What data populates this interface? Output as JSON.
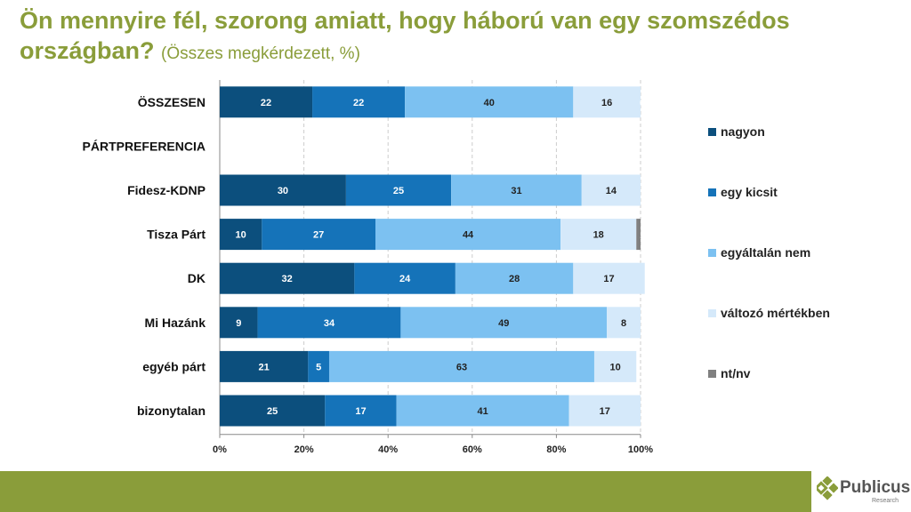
{
  "header": {
    "title": "Ön mennyire fél, szorong amiatt, hogy háború van egy szomszédos országban?",
    "subtitle": "(Összes megkérdezett, %)"
  },
  "chart_data": {
    "type": "bar",
    "stacked": true,
    "orientation": "horizontal",
    "categories": [
      "ÖSSZESEN",
      "PÁRTPREFERENCIA",
      "Fidesz-KDNP",
      "Tisza Párt",
      "DK",
      "Mi Hazánk",
      "egyéb párt",
      "bizonytalan"
    ],
    "series": [
      {
        "name": "nagyon",
        "color": "#0c4f7d",
        "values": [
          22,
          null,
          30,
          10,
          32,
          9,
          21,
          25
        ]
      },
      {
        "name": "egy kicsit",
        "color": "#1573b9",
        "values": [
          22,
          null,
          25,
          27,
          24,
          34,
          5,
          17
        ]
      },
      {
        "name": "egyáltalán nem",
        "color": "#7cc1f1",
        "values": [
          40,
          null,
          31,
          44,
          28,
          49,
          63,
          41
        ]
      },
      {
        "name": "változó mértékben",
        "color": "#d5e9fa",
        "values": [
          16,
          null,
          14,
          18,
          17,
          8,
          10,
          17
        ]
      },
      {
        "name": "nt/nv",
        "color": "#808080",
        "values": [
          0,
          null,
          0,
          1,
          0,
          0,
          0,
          0
        ]
      }
    ],
    "xticks": [
      "0%",
      "20%",
      "40%",
      "60%",
      "80%",
      "100%"
    ],
    "xlim": [
      0,
      100
    ],
    "legend": "right"
  },
  "logo": {
    "name": "Publicus",
    "tagline": "Research"
  }
}
